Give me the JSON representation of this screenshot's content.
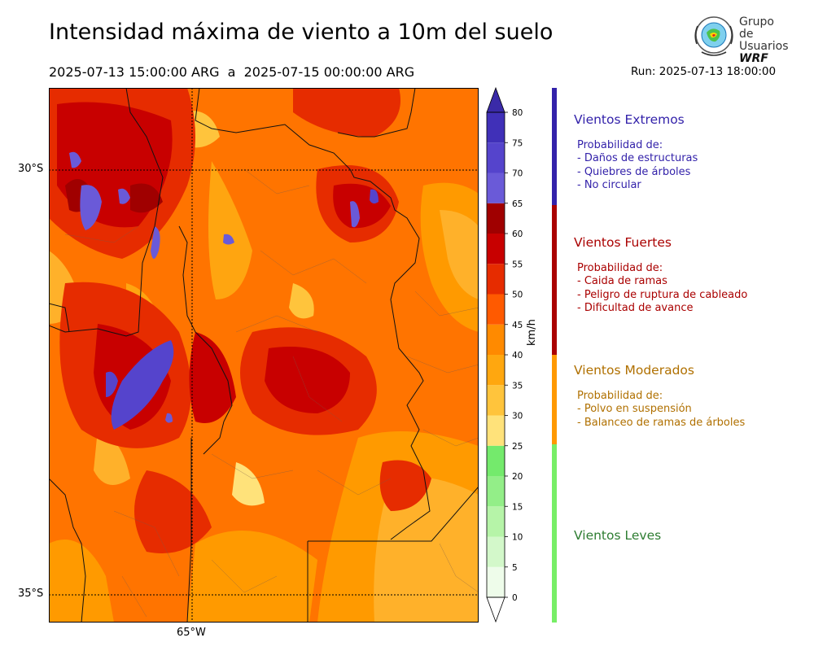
{
  "title": "Intensidad máxima de viento a 10m del suelo",
  "time_range": "2025-07-13 15:00:00 ARG  a  2025-07-15 00:00:00 ARG",
  "run": "Run: 2025-07-13 18:00:00",
  "logo": {
    "line1": "Grupo de",
    "line2": "Usuarios",
    "line3": "WRF"
  },
  "map": {
    "lat_labels": [
      "30°S",
      "35°S"
    ],
    "lon_labels": [
      "65°W"
    ]
  },
  "colorbar": {
    "unit": "km/h",
    "levels": [
      0,
      5,
      10,
      15,
      20,
      25,
      30,
      35,
      40,
      45,
      50,
      55,
      60,
      65,
      70,
      75,
      80
    ],
    "colors": [
      "#eefcea",
      "#d3f8ca",
      "#b6f4a8",
      "#93ee88",
      "#74ea6c",
      "#ffe27a",
      "#ffc43c",
      "#ffa70f",
      "#ff8a00",
      "#ff5a00",
      "#e62c00",
      "#c80000",
      "#a00000",
      "#6a5ad8",
      "#5544cc",
      "#4030b8"
    ],
    "extend_min_color": "#ffffff",
    "extend_max_color": "#3a2aa8"
  },
  "categories": [
    {
      "title": "Vientos Extremos",
      "color": "#3322aa",
      "lines": [
        "Probabilidad de:",
        "- Daños de estructuras",
        "- Quiebres de árboles",
        "- No circular"
      ]
    },
    {
      "title": "Vientos Fuertes",
      "color": "#aa0000",
      "lines": [
        "Probabilidad de:",
        "- Caida de ramas",
        "- Peligro de ruptura de cableado",
        "- Dificultad de avance"
      ]
    },
    {
      "title": "Vientos Moderados",
      "color": "#b07000",
      "lines": [
        "Probabilidad de:",
        "- Polvo en suspensión",
        "- Balanceo de ramas de árboles"
      ]
    },
    {
      "title": "Vientos Leves",
      "color": "#2e7d32",
      "lines": []
    }
  ],
  "bar_colors": {
    "extremos": "#3322aa",
    "fuertes": "#aa0000",
    "moderados": "#ff9900",
    "leves": "#77ee66"
  }
}
